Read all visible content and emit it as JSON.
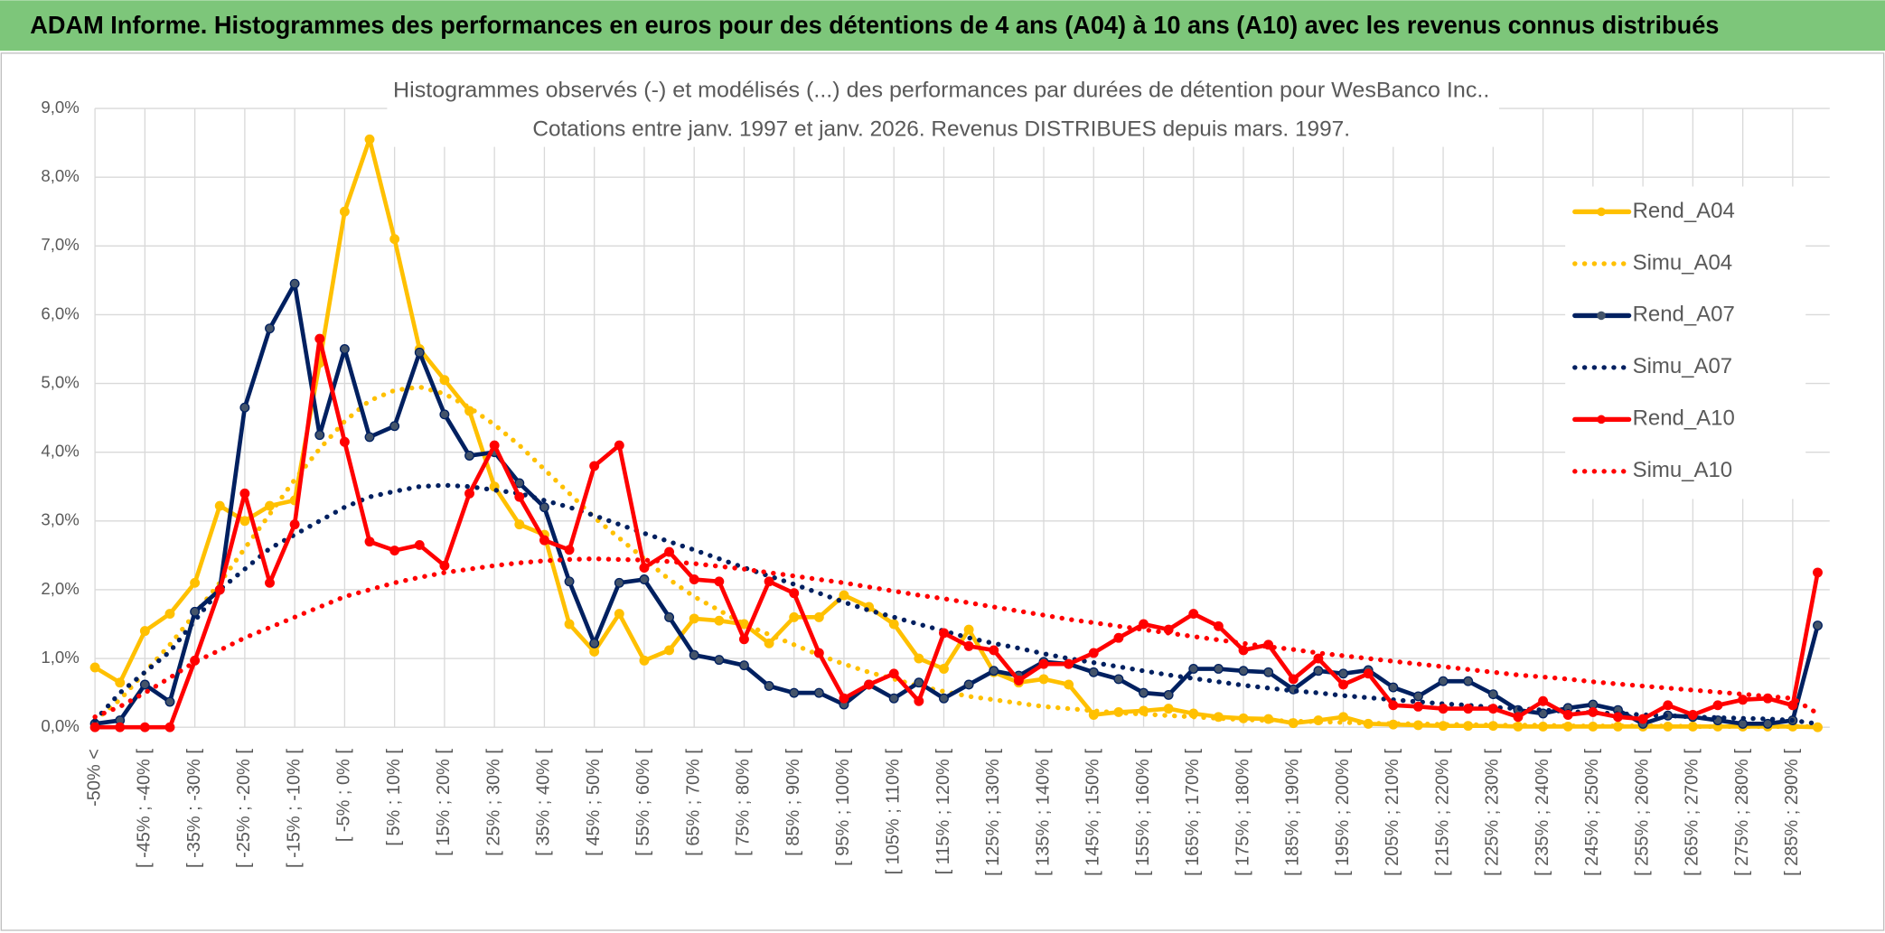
{
  "chart_data": {
    "type": "line",
    "title": "ADAM Informe. Histogrammes des performances en euros pour des détentions de 4 ans (A04) à 10 ans (A10) avec les revenus connus distribués",
    "subtitle": [
      "Histogrammes observés (-) et modélisés (...) des performances par durées de détention pour WesBanco Inc..",
      "Cotations entre janv. 1997 et janv. 2026. Revenus DISTRIBUES depuis mars. 1997."
    ],
    "categories": [
      "-50% <",
      null,
      "[ -45% ; -40% [",
      null,
      "[ -35% ; -30% [",
      null,
      "[ -25% ; -20% [",
      null,
      "[ -15% ; -10% [",
      null,
      "[ -5% ; 0% [",
      null,
      "[ 5% ; 10% [",
      null,
      "[ 15% ; 20% [",
      null,
      "[ 25% ; 30% [",
      null,
      "[ 35% ; 40% [",
      null,
      "[ 45% ; 50% [",
      null,
      "[ 55% ; 60% [",
      null,
      "[ 65% ; 70% [",
      null,
      "[ 75% ; 80% [",
      null,
      "[ 85% ; 90% [",
      null,
      "[ 95% ; 100% [",
      null,
      "[ 105% ; 110% [",
      null,
      "[ 115% ; 120% [",
      null,
      "[ 125% ; 130% [",
      null,
      "[ 135% ; 140% [",
      null,
      "[ 145% ; 150% [",
      null,
      "[ 155% ; 160% [",
      null,
      "[ 165% ; 170% [",
      null,
      "[ 175% ; 180% [",
      null,
      "[ 185% ; 190% [",
      null,
      "[ 195% ; 200% [",
      null,
      "[ 205% ; 210% [",
      null,
      "[ 215% ; 220% [",
      null,
      "[ 225% ; 230% [",
      null,
      "[ 235% ; 240% [",
      null,
      "[ 245% ; 250% [",
      null,
      "[ 255% ; 260% [",
      null,
      "[ 265% ; 270% [",
      null,
      "[ 275% ; 280% [",
      null,
      "[ 285% ; 290% [",
      null
    ],
    "series": [
      {
        "name": "Rend_A04",
        "color": "#ffc000",
        "line_style": "solid",
        "markers": true,
        "values": [
          0.87,
          0.65,
          1.4,
          1.65,
          2.1,
          3.22,
          3.0,
          3.22,
          3.3,
          5.3,
          7.5,
          8.55,
          7.1,
          5.5,
          5.05,
          4.6,
          3.5,
          2.95,
          2.8,
          1.5,
          1.1,
          1.65,
          0.97,
          1.12,
          1.58,
          1.55,
          1.5,
          1.22,
          1.6,
          1.6,
          1.92,
          1.75,
          1.5,
          1.0,
          0.85,
          1.42,
          0.8,
          0.65,
          0.7,
          0.62,
          0.18,
          0.22,
          0.24,
          0.27,
          0.2,
          0.15,
          0.13,
          0.12,
          0.06,
          0.1,
          0.15,
          0.05,
          0.04,
          0.03,
          0.02,
          0.02,
          0.02,
          0.01,
          0.01,
          0.01,
          0.01,
          0.01,
          0.01,
          0.01,
          0.01,
          0.01,
          0.01,
          0.01,
          0.01,
          0.0
        ]
      },
      {
        "name": "Simu_A04",
        "color": "#ffc000",
        "line_style": "dotted",
        "markers": false,
        "values": [
          0.1,
          0.4,
          0.8,
          1.2,
          1.65,
          2.1,
          2.6,
          3.1,
          3.6,
          4.05,
          4.45,
          4.75,
          4.9,
          4.95,
          4.85,
          4.65,
          4.4,
          4.1,
          3.75,
          3.4,
          3.05,
          2.75,
          2.45,
          2.15,
          1.9,
          1.7,
          1.5,
          1.35,
          1.2,
          1.05,
          0.92,
          0.8,
          0.7,
          0.6,
          0.52,
          0.45,
          0.4,
          0.35,
          0.3,
          0.27,
          0.24,
          0.21,
          0.19,
          0.17,
          0.15,
          0.13,
          0.11,
          0.1,
          0.09,
          0.08,
          0.07,
          0.06,
          0.05,
          0.05,
          0.04,
          0.04,
          0.03,
          0.03,
          0.03,
          0.02,
          0.02,
          0.02,
          0.02,
          0.02,
          0.01,
          0.01,
          0.01,
          0.01,
          0.01,
          0.01
        ]
      },
      {
        "name": "Rend_A07",
        "color": "#002060",
        "line_style": "solid",
        "markers": true,
        "values": [
          0.05,
          0.1,
          0.62,
          0.37,
          1.68,
          2.0,
          4.65,
          5.8,
          6.45,
          4.25,
          5.5,
          4.22,
          4.38,
          5.45,
          4.55,
          3.95,
          4.0,
          3.55,
          3.2,
          2.12,
          1.22,
          2.1,
          2.15,
          1.6,
          1.05,
          0.98,
          0.9,
          0.6,
          0.5,
          0.5,
          0.33,
          0.62,
          0.42,
          0.65,
          0.42,
          0.62,
          0.82,
          0.75,
          0.95,
          0.92,
          0.8,
          0.7,
          0.5,
          0.47,
          0.85,
          0.85,
          0.82,
          0.8,
          0.55,
          0.82,
          0.78,
          0.83,
          0.58,
          0.45,
          0.67,
          0.67,
          0.48,
          0.25,
          0.2,
          0.28,
          0.33,
          0.25,
          0.05,
          0.17,
          0.15,
          0.1,
          0.05,
          0.05,
          0.1,
          1.48
        ]
      },
      {
        "name": "Simu_A07",
        "color": "#002060",
        "line_style": "dotted",
        "markers": false,
        "values": [
          0.1,
          0.5,
          0.8,
          1.1,
          1.55,
          2.0,
          2.3,
          2.6,
          2.8,
          3.0,
          3.2,
          3.35,
          3.43,
          3.5,
          3.52,
          3.5,
          3.45,
          3.4,
          3.3,
          3.2,
          3.08,
          2.95,
          2.82,
          2.7,
          2.58,
          2.45,
          2.32,
          2.2,
          2.08,
          1.95,
          1.82,
          1.7,
          1.6,
          1.5,
          1.4,
          1.3,
          1.22,
          1.15,
          1.07,
          1.0,
          0.94,
          0.88,
          0.82,
          0.76,
          0.71,
          0.66,
          0.61,
          0.57,
          0.53,
          0.5,
          0.46,
          0.43,
          0.4,
          0.37,
          0.34,
          0.32,
          0.29,
          0.27,
          0.25,
          0.23,
          0.21,
          0.2,
          0.18,
          0.17,
          0.15,
          0.14,
          0.13,
          0.12,
          0.1,
          0.05
        ]
      },
      {
        "name": "Rend_A10",
        "color": "#ff0000",
        "line_style": "solid",
        "markers": true,
        "values": [
          0,
          0,
          0,
          0,
          0.97,
          2.0,
          3.4,
          2.1,
          2.95,
          5.65,
          4.15,
          2.7,
          2.57,
          2.65,
          2.35,
          3.4,
          4.1,
          3.35,
          2.72,
          2.58,
          3.8,
          4.1,
          2.32,
          2.55,
          2.15,
          2.12,
          1.28,
          2.12,
          1.95,
          1.08,
          0.42,
          0.62,
          0.78,
          0.38,
          1.37,
          1.18,
          1.12,
          0.68,
          0.92,
          0.92,
          1.08,
          1.3,
          1.5,
          1.42,
          1.65,
          1.47,
          1.12,
          1.2,
          0.7,
          1.0,
          0.62,
          0.78,
          0.32,
          0.3,
          0.27,
          0.27,
          0.27,
          0.15,
          0.38,
          0.18,
          0.22,
          0.15,
          0.12,
          0.32,
          0.18,
          0.32,
          0.4,
          0.42,
          0.32,
          2.25
        ]
      },
      {
        "name": "Simu_A10",
        "color": "#ff0000",
        "line_style": "dotted",
        "markers": false,
        "values": [
          0.15,
          0.3,
          0.5,
          0.72,
          0.95,
          1.12,
          1.3,
          1.45,
          1.6,
          1.75,
          1.9,
          2.0,
          2.1,
          2.18,
          2.25,
          2.3,
          2.35,
          2.39,
          2.42,
          2.44,
          2.45,
          2.44,
          2.43,
          2.41,
          2.38,
          2.34,
          2.3,
          2.25,
          2.2,
          2.15,
          2.1,
          2.04,
          1.98,
          1.92,
          1.87,
          1.81,
          1.75,
          1.69,
          1.63,
          1.57,
          1.52,
          1.47,
          1.42,
          1.37,
          1.32,
          1.27,
          1.22,
          1.17,
          1.13,
          1.08,
          1.04,
          1.0,
          0.96,
          0.92,
          0.88,
          0.84,
          0.8,
          0.76,
          0.73,
          0.7,
          0.66,
          0.63,
          0.6,
          0.57,
          0.54,
          0.51,
          0.48,
          0.45,
          0.42,
          0.2
        ]
      }
    ],
    "ylim": [
      0,
      9
    ],
    "yticks": [
      {
        "value": 0,
        "label": "0,0%"
      },
      {
        "value": 1,
        "label": "1,0%"
      },
      {
        "value": 2,
        "label": "2,0%"
      },
      {
        "value": 3,
        "label": "3,0%"
      },
      {
        "value": 4,
        "label": "4,0%"
      },
      {
        "value": 5,
        "label": "5,0%"
      },
      {
        "value": 6,
        "label": "6,0%"
      },
      {
        "value": 7,
        "label": "7,0%"
      },
      {
        "value": 8,
        "label": "8,0%"
      },
      {
        "value": 9,
        "label": "9,0%"
      }
    ],
    "grid": true,
    "legend": "right"
  }
}
